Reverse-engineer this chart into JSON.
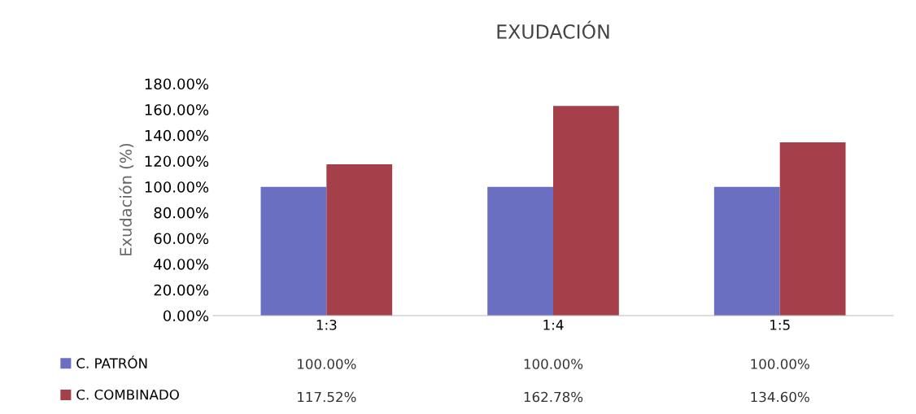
{
  "chart_data": {
    "type": "bar",
    "title": "EXUDACIÓN",
    "ylabel": "Exudación (%)",
    "categories": [
      "1:3",
      "1:4",
      "1:5"
    ],
    "series": [
      {
        "name": "C. PATRÓN",
        "color": "#6b6fc2",
        "values": [
          100,
          100,
          100
        ],
        "value_labels": [
          "100.00%",
          "100.00%",
          "100.00%"
        ]
      },
      {
        "name": "C. COMBINADO",
        "color": "#a5404a",
        "values": [
          117.52,
          162.78,
          134.6
        ],
        "value_labels": [
          "117.52%",
          "162.78%",
          "134.60%"
        ]
      }
    ],
    "ylim": [
      0,
      180
    ],
    "yticks": [
      {
        "value": 0,
        "label": "0.00%"
      },
      {
        "value": 20,
        "label": "20.00%"
      },
      {
        "value": 40,
        "label": "40.00%"
      },
      {
        "value": 60,
        "label": "60.00%"
      },
      {
        "value": 80,
        "label": "80.00%"
      },
      {
        "value": 100,
        "label": "100.00%"
      },
      {
        "value": 120,
        "label": "120.00%"
      },
      {
        "value": 140,
        "label": "140.00%"
      },
      {
        "value": 160,
        "label": "160.00%"
      },
      {
        "value": 180,
        "label": "180.00%"
      }
    ],
    "grid": false,
    "legend": "bottom left"
  }
}
